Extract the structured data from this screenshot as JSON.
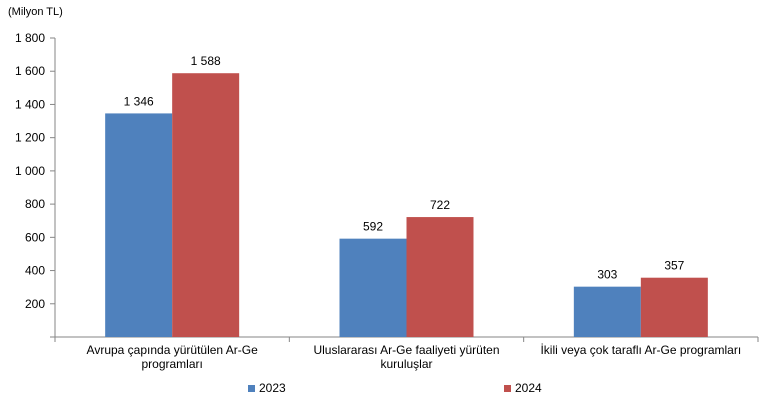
{
  "chart_data": {
    "type": "bar",
    "unit_label": "(Milyon TL)",
    "categories": [
      [
        "Avrupa çapında yürütülen Ar-Ge",
        "programları"
      ],
      [
        "Uluslararası Ar-Ge faaliyeti yürüten",
        "kuruluşlar"
      ],
      [
        "İkili veya çok taraflı Ar-Ge programları"
      ]
    ],
    "series": [
      {
        "name": "2023",
        "values": [
          1346,
          592,
          303
        ],
        "labels": [
          "1 346",
          "592",
          "303"
        ],
        "color": "#4F81BD"
      },
      {
        "name": "2024",
        "values": [
          1588,
          722,
          357
        ],
        "labels": [
          "1 588",
          "722",
          "357"
        ],
        "color": "#C0504D"
      }
    ],
    "y_ticks": [
      200,
      400,
      600,
      800,
      1000,
      1200,
      1400,
      1600,
      1800
    ],
    "y_tick_labels": [
      "200",
      "400",
      "600",
      "800",
      "1 000",
      "1 200",
      "1 400",
      "1 600",
      "1 800"
    ],
    "ylim": [
      0,
      1800
    ],
    "grid": false,
    "legend_position": "bottom"
  }
}
